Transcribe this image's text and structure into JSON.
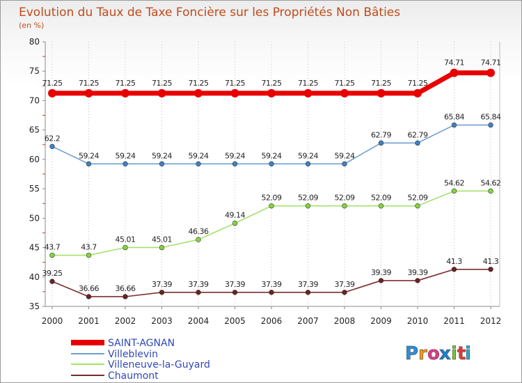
{
  "chart_data": {
    "type": "line",
    "title": "Evolution du Taux de Taxe Foncière sur les Propriétés Non Bâties",
    "subtitle": "(en %)",
    "xlabel": "",
    "ylabel": "",
    "ylim": [
      35,
      80
    ],
    "yticks": [
      "35",
      "40",
      "45",
      "50",
      "55",
      "60",
      "65",
      "70",
      "75",
      "80"
    ],
    "categories": [
      "2000",
      "2001",
      "2002",
      "2003",
      "2004",
      "2005",
      "2006",
      "2007",
      "2008",
      "2009",
      "2010",
      "2011",
      "2012"
    ],
    "grid": "vertical dotted",
    "legend_position": "bottom-left",
    "series": [
      {
        "name": "SAINT-AGNAN",
        "color": "#e80000",
        "values": [
          71.25,
          71.25,
          71.25,
          71.25,
          71.25,
          71.25,
          71.25,
          71.25,
          71.25,
          71.25,
          71.25,
          74.71,
          74.71
        ],
        "labels": [
          "71.25",
          "71.25",
          "71.25",
          "71.25",
          "71.25",
          "71.25",
          "71.25",
          "71.25",
          "71.25",
          "71.25",
          "71.25",
          "74.71",
          "74.71"
        ]
      },
      {
        "name": "Villeblevin",
        "color": "#6e9fd1",
        "marker_color": "#3f82c3",
        "values": [
          62.2,
          59.24,
          59.24,
          59.24,
          59.24,
          59.24,
          59.24,
          59.24,
          59.24,
          62.79,
          62.79,
          65.84,
          65.84
        ],
        "labels": [
          "62.2",
          "59.24",
          "59.24",
          "59.24",
          "59.24",
          "59.24",
          "59.24",
          "59.24",
          "59.24",
          "62.79",
          "62.79",
          "65.84",
          "65.84"
        ]
      },
      {
        "name": "Villeneuve-la-Guyard",
        "color": "#a3e26a",
        "marker_color": "#86d43e",
        "values": [
          43.7,
          43.7,
          45.01,
          45.01,
          46.36,
          49.14,
          52.09,
          52.09,
          52.09,
          52.09,
          52.09,
          54.62,
          54.62
        ],
        "labels": [
          "43.7",
          "43.7",
          "45.01",
          "45.01",
          "46.36",
          "49.14",
          "52.09",
          "52.09",
          "52.09",
          "52.09",
          "52.09",
          "54.62",
          "54.62"
        ]
      },
      {
        "name": "Chaumont",
        "color": "#7a2e2e",
        "marker_color": "#6b2222",
        "values": [
          39.25,
          36.66,
          36.66,
          37.39,
          37.39,
          37.39,
          37.39,
          37.39,
          37.39,
          39.39,
          39.39,
          41.3,
          41.3
        ],
        "labels": [
          "39.25",
          "36.66",
          "36.66",
          "37.39",
          "37.39",
          "37.39",
          "37.39",
          "37.39",
          "37.39",
          "39.39",
          "39.39",
          "41.3",
          "41.3"
        ]
      }
    ]
  },
  "logo": {
    "letters": [
      "P",
      "r",
      "o",
      "x",
      "i",
      "t",
      "i"
    ],
    "colors": [
      "#2a8fd8",
      "#f39a1e",
      "#e23a8a",
      "#1e7fd0",
      "#7cc43a",
      "#e23a3a",
      "#2ea9c9"
    ]
  }
}
